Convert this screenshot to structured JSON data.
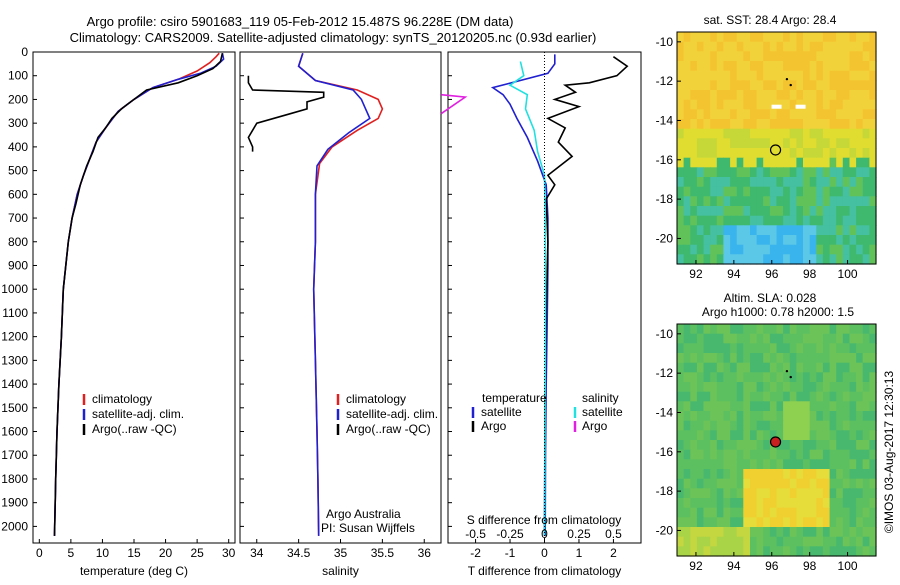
{
  "title": {
    "line1": "Argo profile: csiro 5901683_119 05-Feb-2012 15.487S 96.228E (DM data)",
    "line2": "Climatology: CARS2009. Satellite-adjusted climatology: synTS_20120205.nc (0.93d earlier)"
  },
  "credit": "©IMOS 03-Aug-2017 12:30:13",
  "colors": {
    "climatology": "#e02020",
    "satellite": "#2020d0",
    "argo": "#000000",
    "sal_satellite": "#20e0e0",
    "sal_argo": "#e020e0"
  },
  "chart_data": [
    {
      "type": "line",
      "xlabel": "temperature (deg C)",
      "ylabel": "",
      "xlim": [
        -1,
        31
      ],
      "ylim": [
        2070,
        0
      ],
      "xticks": [
        "0",
        "5",
        "10",
        "15",
        "20",
        "25",
        "30"
      ],
      "yticks": [
        "0",
        "100",
        "200",
        "300",
        "400",
        "500",
        "600",
        "700",
        "800",
        "900",
        "1000",
        "1100",
        "1200",
        "1300",
        "1400",
        "1500",
        "1600",
        "1700",
        "1800",
        "1900",
        "2000"
      ],
      "legend": [
        "climatology",
        "satellite-adj. clim.",
        "Argo(..raw -QC)"
      ],
      "series": [
        {
          "name": "climatology",
          "color": "climatology",
          "points": [
            [
              28.5,
              5
            ],
            [
              28,
              20
            ],
            [
              27,
              45
            ],
            [
              25,
              80
            ],
            [
              22,
              115
            ],
            [
              18,
              150
            ],
            [
              15,
              200
            ],
            [
              12.5,
              250
            ],
            [
              10.5,
              320
            ],
            [
              9,
              380
            ],
            [
              8,
              450
            ],
            [
              7,
              520
            ],
            [
              6,
              600
            ],
            [
              5.2,
              700
            ],
            [
              4.6,
              800
            ],
            [
              4.2,
              900
            ],
            [
              3.8,
              1000
            ],
            [
              3.5,
              1200
            ],
            [
              3.1,
              1400
            ],
            [
              2.8,
              1600
            ],
            [
              2.6,
              1800
            ],
            [
              2.4,
              2040
            ]
          ]
        },
        {
          "name": "satellite-adj. clim.",
          "color": "satellite",
          "points": [
            [
              29,
              5
            ],
            [
              29.2,
              30
            ],
            [
              28,
              60
            ],
            [
              25.5,
              90
            ],
            [
              22,
              115
            ],
            [
              18,
              150
            ],
            [
              15,
              200
            ],
            [
              12.5,
              250
            ],
            [
              10.5,
              320
            ],
            [
              9,
              380
            ],
            [
              8,
              450
            ],
            [
              7,
              520
            ],
            [
              6,
              600
            ],
            [
              5.2,
              700
            ],
            [
              4.6,
              800
            ],
            [
              4.2,
              900
            ],
            [
              3.8,
              1000
            ],
            [
              3.5,
              1200
            ],
            [
              3.1,
              1400
            ],
            [
              2.8,
              1600
            ],
            [
              2.6,
              1800
            ],
            [
              2.4,
              2040
            ]
          ]
        },
        {
          "name": "Argo(..raw -QC)",
          "color": "argo",
          "points": [
            [
              29,
              5
            ],
            [
              28.7,
              40
            ],
            [
              27.5,
              70
            ],
            [
              25,
              100
            ],
            [
              22,
              130
            ],
            [
              17,
              160
            ],
            [
              15,
              200
            ],
            [
              13,
              240
            ],
            [
              11.5,
              280
            ],
            [
              10.5,
              320
            ],
            [
              9.3,
              360
            ],
            [
              8.5,
              420
            ],
            [
              7.5,
              480
            ],
            [
              6.5,
              560
            ],
            [
              5.8,
              640
            ],
            [
              5.2,
              700
            ],
            [
              4.6,
              800
            ],
            [
              4.2,
              900
            ],
            [
              3.8,
              1000
            ],
            [
              3.5,
              1200
            ],
            [
              3.1,
              1400
            ],
            [
              2.8,
              1600
            ],
            [
              2.6,
              1800
            ],
            [
              2.4,
              2040
            ]
          ]
        }
      ]
    },
    {
      "type": "line",
      "xlabel": "salinity",
      "xlim": [
        33.8,
        36.2
      ],
      "ylim": [
        2070,
        0
      ],
      "xticks": [
        "34",
        "34.5",
        "35",
        "35.5",
        "36"
      ],
      "legend": [
        "climatology",
        "satellite-adj. clim.",
        "Argo(..raw -QC)"
      ],
      "note": [
        "Argo Australia",
        "PI: Susan Wijffels"
      ],
      "series": [
        {
          "name": "climatology",
          "color": "climatology",
          "points": [
            [
              34.55,
              5
            ],
            [
              34.5,
              60
            ],
            [
              34.7,
              120
            ],
            [
              35.2,
              160
            ],
            [
              35.45,
              200
            ],
            [
              35.5,
              240
            ],
            [
              35.45,
              280
            ],
            [
              35.2,
              330
            ],
            [
              34.9,
              400
            ],
            [
              34.75,
              470
            ],
            [
              34.7,
              600
            ],
            [
              34.7,
              800
            ],
            [
              34.68,
              1000
            ],
            [
              34.7,
              1300
            ],
            [
              34.72,
              1600
            ],
            [
              34.73,
              1800
            ],
            [
              34.74,
              2040
            ]
          ]
        },
        {
          "name": "satellite-adj. clim.",
          "color": "satellite",
          "points": [
            [
              34.55,
              5
            ],
            [
              34.5,
              60
            ],
            [
              34.7,
              120
            ],
            [
              35.15,
              160
            ],
            [
              35.25,
              200
            ],
            [
              35.3,
              240
            ],
            [
              35.35,
              280
            ],
            [
              35.1,
              340
            ],
            [
              34.85,
              410
            ],
            [
              34.72,
              480
            ],
            [
              34.7,
              600
            ],
            [
              34.7,
              800
            ],
            [
              34.68,
              1000
            ],
            [
              34.7,
              1300
            ],
            [
              34.72,
              1600
            ],
            [
              34.73,
              1800
            ],
            [
              34.74,
              2040
            ]
          ]
        },
        {
          "name": "Argo(..raw -QC)",
          "color": "argo",
          "points": [
            [
              33.9,
              100
            ],
            [
              33.9,
              130
            ],
            [
              33.95,
              160
            ],
            [
              34.8,
              170
            ],
            [
              34.8,
              190
            ],
            [
              34.6,
              210
            ],
            [
              34.6,
              240
            ],
            [
              34.4,
              260
            ],
            [
              34.0,
              300
            ],
            [
              33.95,
              330
            ],
            [
              33.9,
              360
            ],
            [
              33.95,
              400
            ],
            [
              33.95,
              420
            ]
          ]
        }
      ]
    },
    {
      "type": "line",
      "xlabel": "T difference from climatology",
      "top_label": "S difference from climatology",
      "xlim": [
        -2.8,
        2.8
      ],
      "ylim": [
        2070,
        0
      ],
      "xticks": [
        "-2",
        "-1",
        "0",
        "1",
        "2"
      ],
      "top_ticks": [
        "-0.5",
        "-0.25",
        "0",
        "0.25",
        "0.5"
      ],
      "legend_temperature": [
        "temperature",
        "satellite",
        "Argo"
      ],
      "legend_salinity": [
        "salinity",
        "satellite",
        "Argo"
      ],
      "series": [
        {
          "name": "temperature satellite",
          "color": "satellite",
          "points": [
            [
              0.3,
              10
            ],
            [
              0.3,
              50
            ],
            [
              0.1,
              90
            ],
            [
              -1.5,
              150
            ],
            [
              -1.2,
              180
            ],
            [
              -1.0,
              220
            ],
            [
              -0.8,
              280
            ],
            [
              -0.5,
              360
            ],
            [
              -0.2,
              460
            ],
            [
              0.05,
              560
            ],
            [
              0.1,
              700
            ],
            [
              0.1,
              900
            ],
            [
              0.08,
              1100
            ],
            [
              0.05,
              1400
            ],
            [
              0.03,
              1700
            ],
            [
              0.02,
              2040
            ]
          ]
        },
        {
          "name": "temperature Argo",
          "color": "argo",
          "points": [
            [
              2.0,
              20
            ],
            [
              2.4,
              60
            ],
            [
              2.1,
              100
            ],
            [
              1.3,
              130
            ],
            [
              0.6,
              140
            ],
            [
              0.9,
              170
            ],
            [
              0.3,
              200
            ],
            [
              1.0,
              230
            ],
            [
              0.1,
              280
            ],
            [
              0.6,
              320
            ],
            [
              0.4,
              380
            ],
            [
              0.8,
              440
            ],
            [
              0.1,
              520
            ],
            [
              0.3,
              560
            ],
            [
              0.05,
              620
            ],
            [
              0.1,
              800
            ],
            [
              0.05,
              1100
            ],
            [
              0.02,
              1400
            ],
            [
              0.01,
              1700
            ],
            [
              0.0,
              2040
            ]
          ]
        },
        {
          "name": "salinity satellite",
          "color": "sal_satellite",
          "points": [
            [
              -0.7,
              40
            ],
            [
              -0.6,
              100
            ],
            [
              -1.0,
              140
            ],
            [
              -0.5,
              180
            ],
            [
              -0.55,
              240
            ],
            [
              -0.3,
              330
            ],
            [
              -0.2,
              420
            ],
            [
              0.0,
              520
            ],
            [
              0.02,
              700
            ],
            [
              0.03,
              1000
            ],
            [
              0.02,
              1400
            ],
            [
              0.01,
              1800
            ],
            [
              0.0,
              2040
            ]
          ]
        },
        {
          "name": "salinity Argo",
          "color": "sal_argo",
          "points": [
            [
              -3.0,
              180
            ],
            [
              -2.3,
              190
            ],
            [
              -2.6,
              220
            ],
            [
              -3.0,
              260
            ]
          ]
        }
      ]
    }
  ],
  "maps": [
    {
      "title": "sat. SST: 28.4  Argo: 28.4",
      "xticks": [
        "92",
        "94",
        "96",
        "98",
        "100"
      ],
      "yticks": [
        "-10",
        "-12",
        "-14",
        "-16",
        "-18",
        "-20"
      ]
    },
    {
      "title_line1": "Altim. SLA: 0.028",
      "title_line2": "Argo h1000: 0.78 h2000: 1.5",
      "xticks": [
        "92",
        "94",
        "96",
        "98",
        "100"
      ],
      "yticks": [
        "-10",
        "-12",
        "-14",
        "-16",
        "-18",
        "-20"
      ]
    }
  ]
}
